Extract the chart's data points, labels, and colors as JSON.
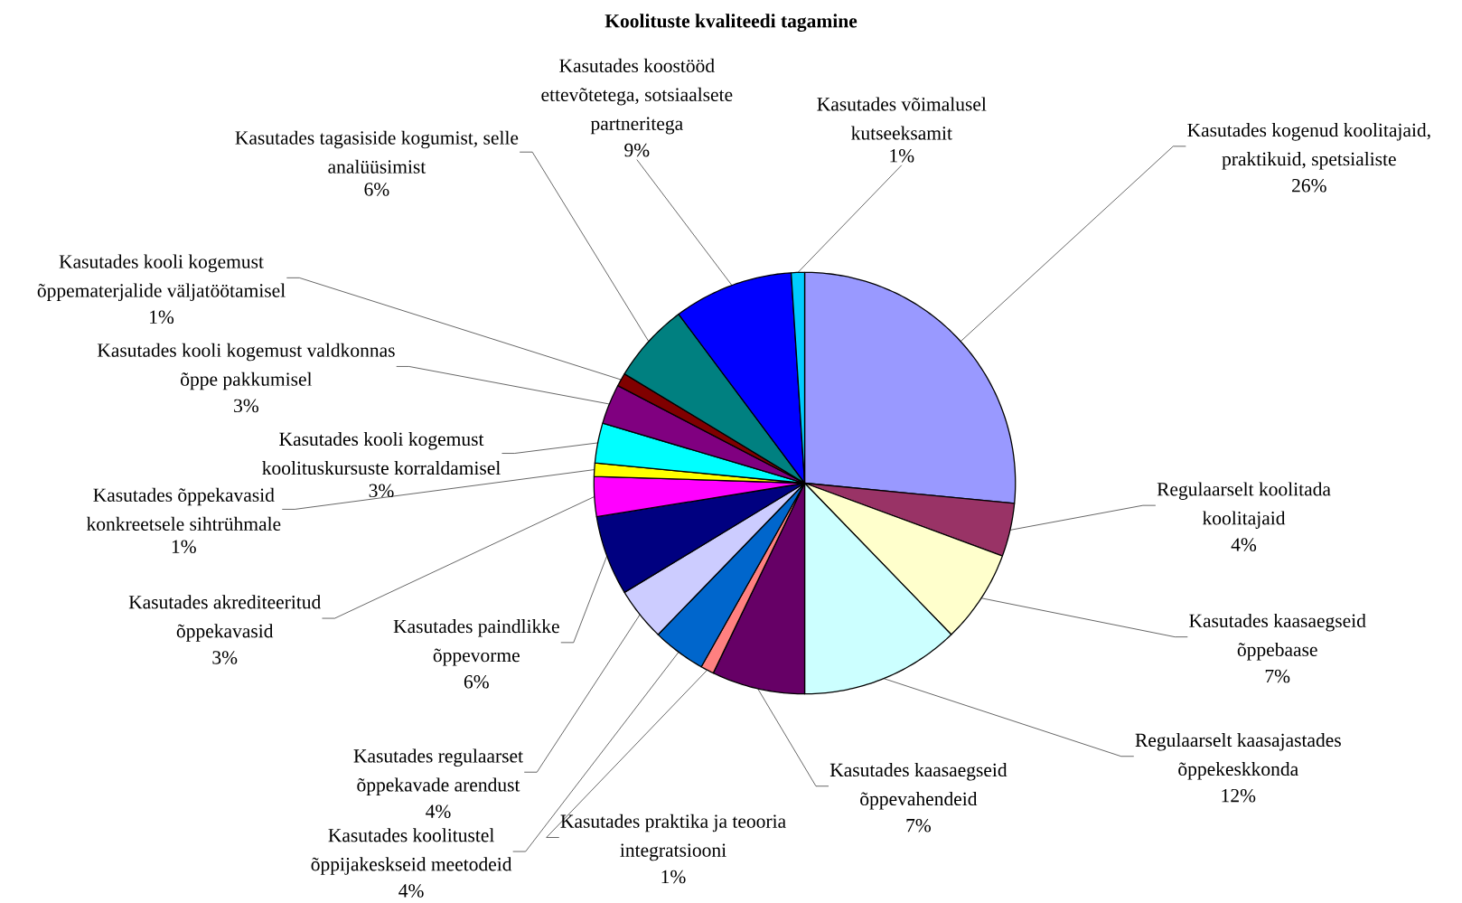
{
  "chart_data": {
    "type": "pie",
    "title": "Koolituste kvaliteedi tagamine",
    "categories": [
      "Kasutades kogenud koolitajaid, praktikuid, spetsialiste",
      "Regulaarselt koolitada koolitajaid",
      "Kasutades kaasaegseid õppebaase",
      "Regulaarselt kaasajastades õppekeskkonda",
      "Kasutades kaasaegseid õppevahendeid",
      "Kasutades praktika ja teooria integratsiooni",
      "Kasutades koolitustel õppijakeskseid meetodeid",
      "Kasutades regulaarset õppekavade arendust",
      "Kasutades paindlikke õppevorme",
      "Kasutades akrediteeritud õppekavasid",
      "Kasutades õppekavasid konkreetsele sihtrühmale",
      "Kasutades kooli kogemust koolituskursuste korraldamisel",
      "Kasutades kooli kogemust valdkonnas õppe pakkumisel",
      "Kasutades kooli kogemust õppematerjalide väljatöötamisel",
      "Kasutades tagasiside kogumist, selle analüüsimist",
      "Kasutades koostööd ettevõtetega, sotsiaalsete partneritega",
      "Kasutades võimalusel kutseeksamit"
    ],
    "values": [
      26,
      4,
      7,
      12,
      7,
      1,
      4,
      4,
      6,
      3,
      1,
      3,
      3,
      1,
      6,
      9,
      1
    ],
    "value_labels": [
      "26%",
      "4%",
      "7%",
      "12%",
      "7%",
      "1%",
      "4%",
      "4%",
      "6%",
      "3%",
      "1%",
      "3%",
      "3%",
      "1%",
      "6%",
      "9%",
      "1%"
    ],
    "colors": [
      "#9999ff",
      "#993366",
      "#ffffcc",
      "#ccffff",
      "#660066",
      "#ff8080",
      "#0066cc",
      "#ccccff",
      "#000080",
      "#ff00ff",
      "#ffff00",
      "#00ffff",
      "#800080",
      "#800000",
      "#008080",
      "#0000ff",
      "#00ccff"
    ]
  }
}
